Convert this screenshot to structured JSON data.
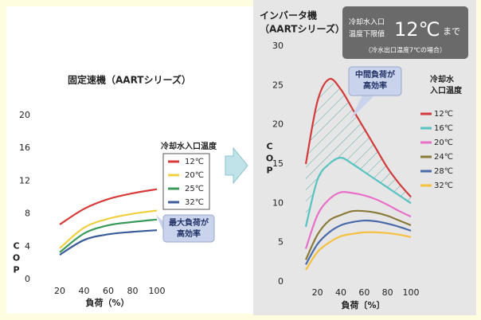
{
  "chart_data": [
    {
      "type": "line",
      "title": "固定速機（AARTシリーズ）",
      "xlabel": "負荷（%）",
      "ylabel": "COP",
      "x": [
        20,
        40,
        60,
        80,
        100
      ],
      "xlim": [
        20,
        100
      ],
      "xticks": [
        20,
        40,
        60,
        80,
        100
      ],
      "ylim": [
        0,
        20
      ],
      "yticks": [
        0,
        4,
        8,
        12,
        16,
        20
      ],
      "legend_title": [
        "冷却水入口温度"
      ],
      "annotation": [
        "最大負荷が",
        "高効率"
      ],
      "series": [
        {
          "name": "12℃",
          "color": "#d83a3a",
          "values": [
            6.7,
            8.6,
            9.8,
            10.5,
            11.0
          ]
        },
        {
          "name": "20℃",
          "color": "#f0d040",
          "values": [
            3.8,
            6.3,
            7.4,
            8.0,
            8.4
          ]
        },
        {
          "name": "25℃",
          "color": "#3a9a5a",
          "values": [
            3.3,
            5.6,
            6.6,
            7.0,
            7.3
          ]
        },
        {
          "name": "32℃",
          "color": "#3a5a9a",
          "values": [
            3.0,
            4.8,
            5.5,
            5.8,
            6.0
          ]
        }
      ]
    },
    {
      "type": "line",
      "title": "インバータ機",
      "subtitle": "（AARTシリーズ）",
      "xlabel": "負荷〔%〕",
      "ylabel": "COP",
      "x": [
        10,
        20,
        30,
        40,
        50,
        60,
        70,
        80,
        90,
        100
      ],
      "xlim": [
        10,
        100
      ],
      "xticks": [
        20,
        40,
        60,
        80,
        100
      ],
      "ylim": [
        0,
        30
      ],
      "yticks": [
        0,
        5,
        10,
        15,
        20,
        25,
        30
      ],
      "legend_title": [
        "冷却水",
        "入口温度"
      ],
      "annotation": [
        "中間負荷が",
        "高効率"
      ],
      "note": [
        "冷却水入口",
        "温度下限値",
        "12℃",
        "まで",
        "（冷水出口温度7℃の場合）"
      ],
      "series": [
        {
          "name": "12℃",
          "color": "#d33a3a",
          "values": [
            15,
            23,
            25.8,
            24.5,
            22,
            19.5,
            17,
            14.5,
            12.5,
            10.8
          ]
        },
        {
          "name": "16℃",
          "color": "#58c3c0",
          "values": [
            7,
            13,
            15,
            15.8,
            15,
            14,
            13,
            12,
            11,
            10
          ]
        },
        {
          "name": "20℃",
          "color": "#e870c8",
          "values": [
            4.2,
            8.5,
            10.5,
            11.4,
            11.3,
            11,
            10.5,
            9.8,
            9,
            8.3
          ]
        },
        {
          "name": "24℃",
          "color": "#8a7a3a",
          "values": [
            2.8,
            6,
            7.8,
            8.5,
            9,
            9,
            8.8,
            8.4,
            7.8,
            7.2
          ]
        },
        {
          "name": "28℃",
          "color": "#4a6aa8",
          "values": [
            2.2,
            4.8,
            6.3,
            7.2,
            7.6,
            7.8,
            7.7,
            7.4,
            7,
            6.5
          ]
        },
        {
          "name": "32℃",
          "color": "#f5c040",
          "values": [
            1.5,
            3.8,
            5.0,
            5.8,
            6.1,
            6.3,
            6.3,
            6.2,
            6,
            5.7
          ]
        }
      ]
    }
  ]
}
